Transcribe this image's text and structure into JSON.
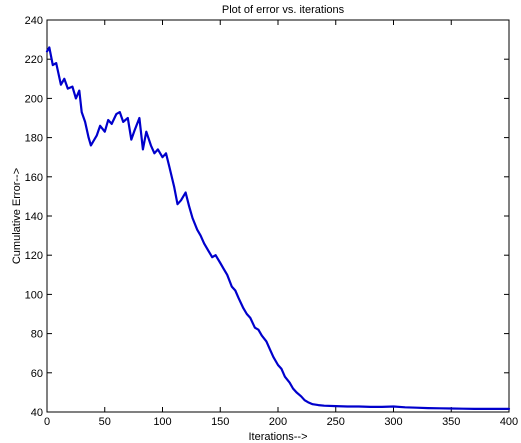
{
  "chart_data": {
    "type": "line",
    "title": "Plot of error vs. iterations",
    "xlabel": "Iterations-->",
    "ylabel": "Cumulative Error-->",
    "xlim": [
      0,
      400
    ],
    "ylim": [
      40,
      240
    ],
    "xticks": [
      0,
      50,
      100,
      150,
      200,
      250,
      300,
      350,
      400
    ],
    "yticks": [
      40,
      60,
      80,
      100,
      120,
      140,
      160,
      180,
      200,
      220,
      240
    ],
    "grid": false,
    "line_color": "#0000cc",
    "series": [
      {
        "x": [
          0,
          2,
          5,
          8,
          12,
          15,
          18,
          22,
          25,
          28,
          30,
          33,
          36,
          38,
          40,
          43,
          46,
          50,
          53,
          56,
          60,
          63,
          66,
          70,
          73,
          76,
          80,
          83,
          86,
          90,
          93,
          96,
          100,
          103,
          106,
          110,
          113,
          116,
          120,
          123,
          126,
          130,
          133,
          136,
          140,
          143,
          146,
          150,
          153,
          156,
          160,
          163,
          166,
          170,
          173,
          176,
          180,
          183,
          186,
          190,
          193,
          196,
          200,
          203,
          206,
          210,
          213,
          216,
          220,
          223,
          226,
          230,
          235,
          240,
          250,
          260,
          270,
          280,
          290,
          300,
          310,
          320,
          330,
          340,
          350,
          360,
          370,
          380,
          390,
          400
        ],
        "y": [
          224,
          226,
          217,
          218,
          207,
          210,
          205,
          206,
          200,
          204,
          193,
          188,
          180,
          176,
          178,
          181,
          186,
          183,
          189,
          187,
          192,
          193,
          188,
          190,
          179,
          184,
          190,
          174,
          183,
          176,
          172,
          174,
          170,
          172,
          165,
          155,
          146,
          148,
          152,
          145,
          139,
          133,
          130,
          126,
          122,
          119,
          120,
          116,
          113,
          110,
          104,
          102,
          98,
          93,
          90,
          88,
          83,
          82,
          79,
          76,
          72,
          68,
          64,
          62,
          58,
          55,
          52,
          50,
          48,
          46,
          45,
          44,
          43.5,
          43.2,
          43,
          42.8,
          42.8,
          42.6,
          42.6,
          42.8,
          42.4,
          42.2,
          42,
          41.9,
          41.8,
          41.7,
          41.6,
          41.6,
          41.6,
          41.6
        ]
      }
    ]
  }
}
